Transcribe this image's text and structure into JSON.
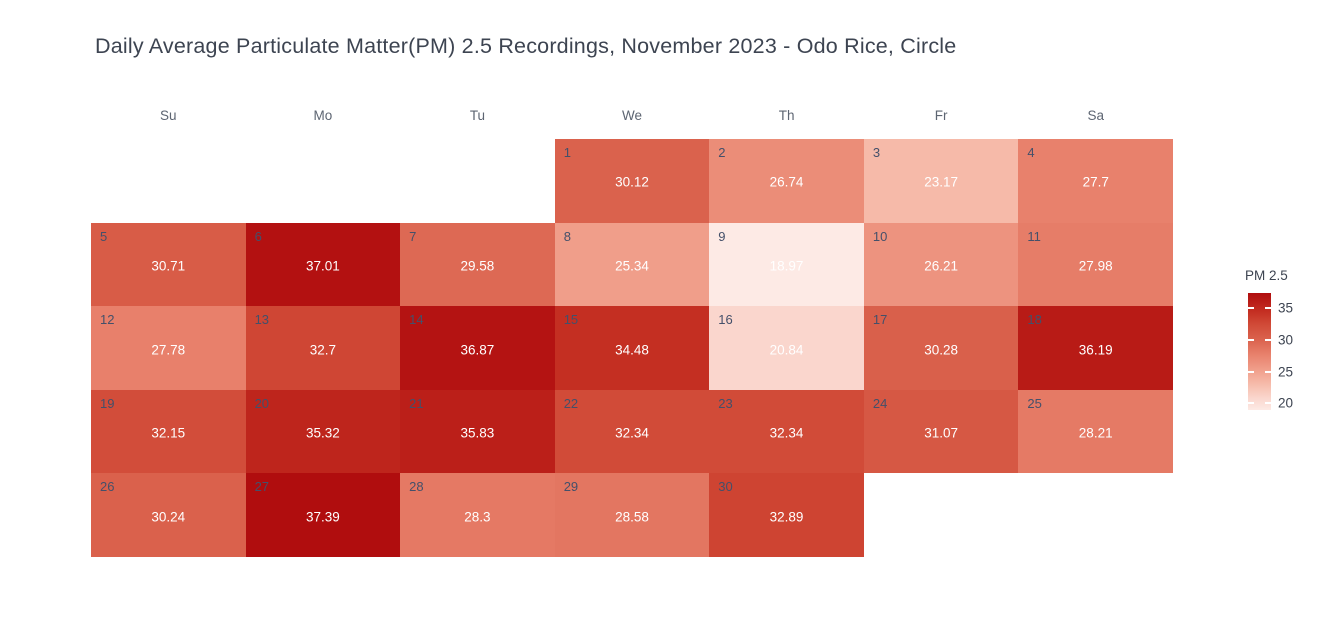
{
  "title": "Daily Average Particulate Matter(PM) 2.5 Recordings, November 2023 - Odo Rice, Circle",
  "colorbar": {
    "title": "PM 2.5",
    "ticks": [
      35,
      30,
      25,
      20
    ]
  },
  "chart_data": {
    "type": "heatmap",
    "title": "Daily Average Particulate Matter(PM) 2.5 Recordings, November 2023 - Odo Rice, Circle",
    "legend_title": "PM 2.5",
    "weekday_headers": [
      "Su",
      "Mo",
      "Tu",
      "We",
      "Th",
      "Fr",
      "Sa"
    ],
    "month": "November 2023",
    "value_range": [
      18.97,
      37.39
    ],
    "colorbar_ticks": [
      35,
      30,
      25,
      20
    ],
    "color_stops": [
      {
        "value": 18.97,
        "color": "#fdeae5"
      },
      {
        "value": 20.84,
        "color": "#fad6cd"
      },
      {
        "value": 23.17,
        "color": "#f6baa9"
      },
      {
        "value": 25.34,
        "color": "#f09e8a"
      },
      {
        "value": 27.7,
        "color": "#e8816c"
      },
      {
        "value": 30.12,
        "color": "#da624d"
      },
      {
        "value": 32.34,
        "color": "#d14b38"
      },
      {
        "value": 34.48,
        "color": "#c42f22"
      },
      {
        "value": 37.39,
        "color": "#b00d0e"
      }
    ],
    "days": [
      {
        "day": 1,
        "week": 0,
        "weekday": 3,
        "value": 30.12
      },
      {
        "day": 2,
        "week": 0,
        "weekday": 4,
        "value": 26.74
      },
      {
        "day": 3,
        "week": 0,
        "weekday": 5,
        "value": 23.17
      },
      {
        "day": 4,
        "week": 0,
        "weekday": 6,
        "value": 27.7
      },
      {
        "day": 5,
        "week": 1,
        "weekday": 0,
        "value": 30.71
      },
      {
        "day": 6,
        "week": 1,
        "weekday": 1,
        "value": 37.01
      },
      {
        "day": 7,
        "week": 1,
        "weekday": 2,
        "value": 29.58
      },
      {
        "day": 8,
        "week": 1,
        "weekday": 3,
        "value": 25.34
      },
      {
        "day": 9,
        "week": 1,
        "weekday": 4,
        "value": 18.97
      },
      {
        "day": 10,
        "week": 1,
        "weekday": 5,
        "value": 26.21
      },
      {
        "day": 11,
        "week": 1,
        "weekday": 6,
        "value": 27.98
      },
      {
        "day": 12,
        "week": 2,
        "weekday": 0,
        "value": 27.78
      },
      {
        "day": 13,
        "week": 2,
        "weekday": 1,
        "value": 32.7
      },
      {
        "day": 14,
        "week": 2,
        "weekday": 2,
        "value": 36.87
      },
      {
        "day": 15,
        "week": 2,
        "weekday": 3,
        "value": 34.48
      },
      {
        "day": 16,
        "week": 2,
        "weekday": 4,
        "value": 20.84
      },
      {
        "day": 17,
        "week": 2,
        "weekday": 5,
        "value": 30.28
      },
      {
        "day": 18,
        "week": 2,
        "weekday": 6,
        "value": 36.19
      },
      {
        "day": 19,
        "week": 3,
        "weekday": 0,
        "value": 32.15
      },
      {
        "day": 20,
        "week": 3,
        "weekday": 1,
        "value": 35.32
      },
      {
        "day": 21,
        "week": 3,
        "weekday": 2,
        "value": 35.83
      },
      {
        "day": 22,
        "week": 3,
        "weekday": 3,
        "value": 32.34
      },
      {
        "day": 23,
        "week": 3,
        "weekday": 4,
        "value": 32.34
      },
      {
        "day": 24,
        "week": 3,
        "weekday": 5,
        "value": 31.07
      },
      {
        "day": 25,
        "week": 3,
        "weekday": 6,
        "value": 28.21
      },
      {
        "day": 26,
        "week": 4,
        "weekday": 0,
        "value": 30.24
      },
      {
        "day": 27,
        "week": 4,
        "weekday": 1,
        "value": 37.39
      },
      {
        "day": 28,
        "week": 4,
        "weekday": 2,
        "value": 28.3
      },
      {
        "day": 29,
        "week": 4,
        "weekday": 3,
        "value": 28.58
      },
      {
        "day": 30,
        "week": 4,
        "weekday": 4,
        "value": 32.89
      }
    ]
  }
}
